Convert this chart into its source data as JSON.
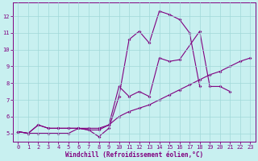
{
  "title": "",
  "xlabel": "Windchill (Refroidissement éolien,°C)",
  "bg_color": "#c8f0f0",
  "grid_color": "#a0d8d8",
  "line_color": "#800080",
  "xlim": [
    -0.5,
    23.5
  ],
  "ylim": [
    4.5,
    12.8
  ],
  "xticks": [
    0,
    1,
    2,
    3,
    4,
    5,
    6,
    7,
    8,
    9,
    10,
    11,
    12,
    13,
    14,
    15,
    16,
    17,
    18,
    19,
    20,
    21,
    22,
    23
  ],
  "yticks": [
    5,
    6,
    7,
    8,
    9,
    10,
    11,
    12
  ],
  "line1_y": [
    5.1,
    5.0,
    5.5,
    5.3,
    5.3,
    5.3,
    5.3,
    5.2,
    4.8,
    5.3,
    7.2,
    10.6,
    11.1,
    10.4,
    12.3,
    12.1,
    11.8,
    11.0,
    7.8,
    null,
    null,
    null,
    null,
    null
  ],
  "line2_y": [
    5.1,
    5.0,
    5.5,
    5.3,
    5.3,
    5.3,
    5.3,
    5.2,
    5.2,
    5.5,
    7.8,
    7.2,
    7.5,
    7.2,
    9.5,
    9.3,
    9.4,
    null,
    11.1,
    7.8,
    7.8,
    7.5,
    null,
    null
  ],
  "line3_y": [
    5.1,
    5.0,
    5.0,
    5.0,
    5.0,
    5.0,
    5.3,
    5.3,
    5.3,
    5.5,
    6.0,
    6.3,
    6.5,
    6.7,
    7.0,
    7.3,
    7.6,
    7.9,
    8.2,
    8.5,
    8.7,
    9.0,
    9.3,
    9.5
  ],
  "markersize": 2.0,
  "linewidth": 0.8,
  "font_size": 5.0,
  "label_font_size": 5.5
}
